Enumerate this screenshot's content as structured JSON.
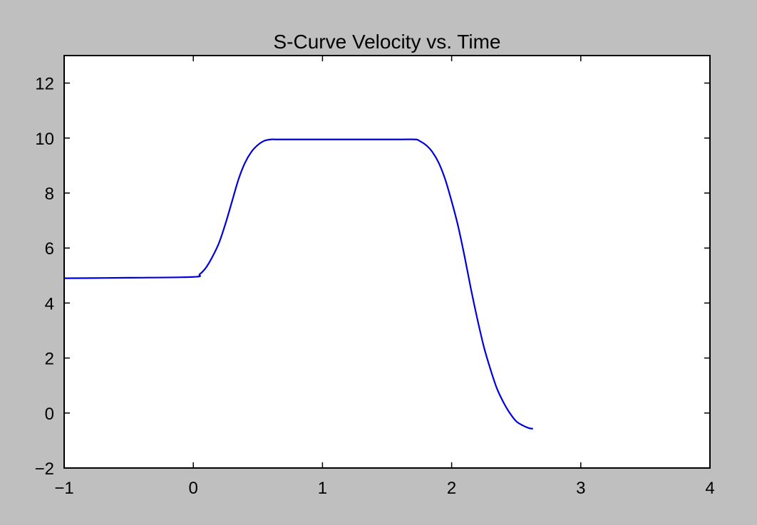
{
  "colors": {
    "figure_background": "#bfbfbf",
    "plot_background": "#ffffff",
    "axes": "#000000",
    "series_line": "#0000dd"
  },
  "chart_data": {
    "type": "line",
    "title": "S-Curve Velocity vs. Time",
    "xlabel": "",
    "ylabel": "",
    "xlim": [
      -1,
      4
    ],
    "ylim": [
      -2,
      13
    ],
    "x_ticks": [
      -1,
      0,
      1,
      2,
      3,
      4
    ],
    "y_ticks": [
      -2,
      0,
      2,
      4,
      6,
      8,
      10,
      12
    ],
    "x_tick_labels": [
      "−1",
      "0",
      "1",
      "2",
      "3",
      "4"
    ],
    "y_tick_labels": [
      "−2",
      "0",
      "2",
      "4",
      "6",
      "8",
      "10",
      "12"
    ],
    "grid": false,
    "legend": "none",
    "series": [
      {
        "color": "#0000dd",
        "x": [
          -1.0,
          -0.5,
          0.0,
          0.05,
          0.1,
          0.15,
          0.2,
          0.25,
          0.3,
          0.35,
          0.4,
          0.45,
          0.5,
          0.55,
          0.6,
          0.65,
          0.8,
          1.0,
          1.2,
          1.4,
          1.6,
          1.72,
          1.75,
          1.8,
          1.85,
          1.9,
          1.95,
          2.0,
          2.05,
          2.1,
          2.15,
          2.2,
          2.25,
          2.3,
          2.35,
          2.4,
          2.45,
          2.5,
          2.55,
          2.6,
          2.63
        ],
        "y": [
          4.9,
          4.92,
          4.95,
          5.05,
          5.3,
          5.7,
          6.2,
          6.9,
          7.7,
          8.5,
          9.1,
          9.5,
          9.75,
          9.9,
          9.95,
          9.95,
          9.95,
          9.95,
          9.95,
          9.95,
          9.95,
          9.95,
          9.9,
          9.75,
          9.5,
          9.1,
          8.5,
          7.7,
          6.8,
          5.7,
          4.5,
          3.4,
          2.4,
          1.6,
          0.9,
          0.4,
          0.0,
          -0.3,
          -0.45,
          -0.55,
          -0.57
        ]
      }
    ]
  }
}
